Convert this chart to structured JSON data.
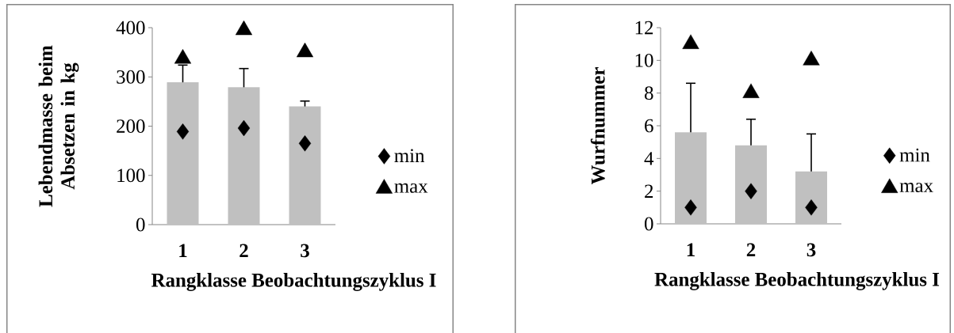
{
  "chart_data": [
    {
      "type": "bar",
      "categories": [
        "1",
        "2",
        "3"
      ],
      "xlabel": "Rangklasse Beobachtungszyklus I",
      "ylabel": "Lebendmasse beim Absetzen in kg",
      "ylim": [
        0,
        400
      ],
      "yticks": [
        0,
        100,
        200,
        300,
        400
      ],
      "legend": "right",
      "series": [
        {
          "color": "#c0c0c0",
          "values": [
            289,
            279,
            240
          ],
          "errors": [
            [
              289,
              324
            ],
            [
              279,
              317
            ],
            [
              240,
              251
            ]
          ]
        },
        {
          "type": "scatter",
          "name": "min",
          "color": "#000000",
          "marker": "diamond",
          "values": [
            189,
            196,
            165
          ]
        },
        {
          "type": "scatter",
          "name": "max",
          "color": "#000000",
          "marker": "triangle",
          "values": [
            337,
            395,
            350
          ]
        }
      ]
    },
    {
      "type": "bar",
      "categories": [
        "1",
        "2",
        "3"
      ],
      "xlabel": "Rangklasse Beobachtungszyklus I",
      "ylabel": "Wurfnummer",
      "ylim": [
        0,
        12
      ],
      "yticks": [
        0,
        2,
        4,
        6,
        8,
        10,
        12
      ],
      "legend": "right",
      "series": [
        {
          "color": "#c0c0c0",
          "values": [
            5.6,
            4.8,
            3.2
          ],
          "errors": [
            [
              5.6,
              8.6
            ],
            [
              4.8,
              6.4
            ],
            [
              3.2,
              5.5
            ]
          ]
        },
        {
          "type": "scatter",
          "name": "min",
          "color": "#000000",
          "marker": "diamond",
          "values": [
            1,
            2,
            1
          ]
        },
        {
          "type": "scatter",
          "name": "max",
          "color": "#000000",
          "marker": "triangle",
          "values": [
            11,
            8,
            10
          ]
        }
      ]
    }
  ]
}
